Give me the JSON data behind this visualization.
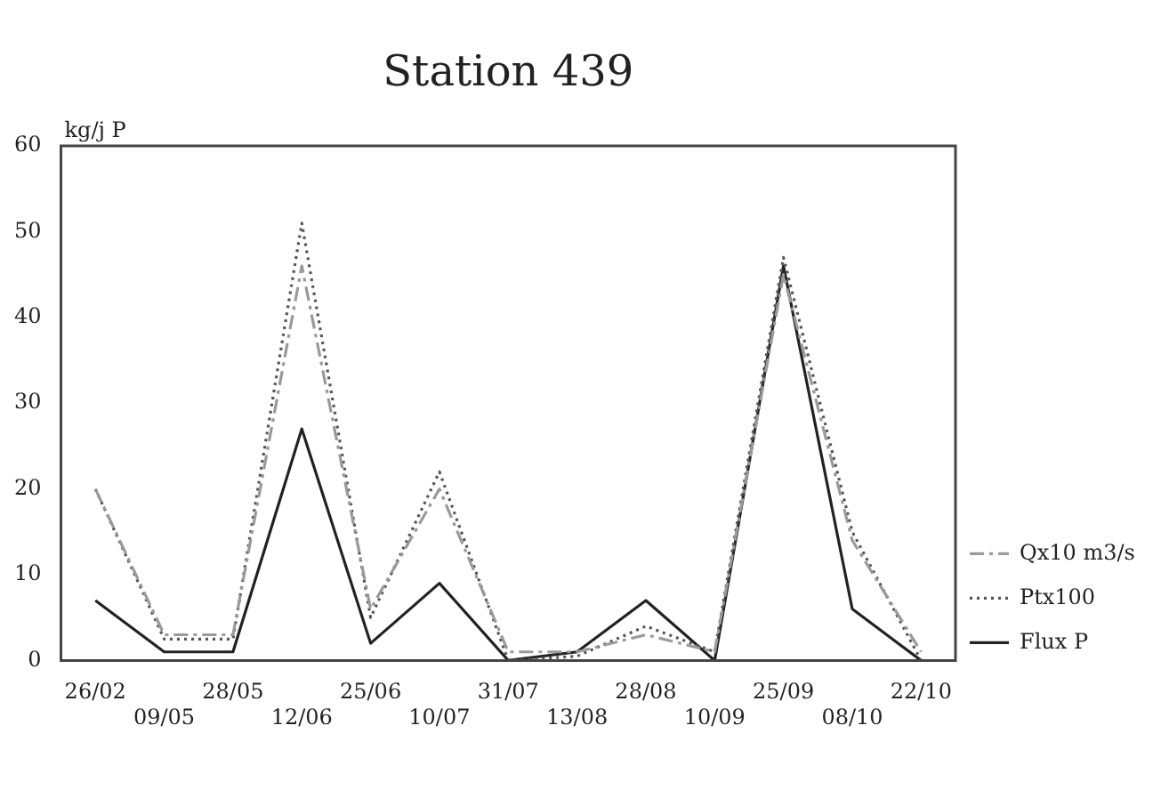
{
  "chart_data": {
    "type": "line",
    "title": "Station 439",
    "ylabel": "kg/j P",
    "categories": [
      "26/02",
      "09/05",
      "28/05",
      "12/06",
      "25/06",
      "10/07",
      "31/07",
      "13/08",
      "28/08",
      "10/09",
      "25/09",
      "08/10",
      "22/10"
    ],
    "series": [
      {
        "name": "Qx10 m3/s",
        "color": "#9a9a9a",
        "line_style": "dashed",
        "values": [
          20,
          3,
          3,
          46,
          6,
          20,
          1,
          1,
          3,
          1,
          45,
          14,
          1
        ]
      },
      {
        "name": "Ptx100",
        "color": "#555555",
        "line_style": "dotted",
        "values": [
          20,
          2.5,
          2.5,
          51,
          5,
          22,
          0,
          0.5,
          4,
          1,
          47,
          15,
          0
        ]
      },
      {
        "name": "Flux P",
        "color": "#222222",
        "line_style": "solid",
        "values": [
          7,
          1,
          1,
          27,
          2,
          9,
          0,
          1,
          7,
          0,
          46,
          6,
          0
        ]
      }
    ],
    "ylim": [
      0,
      60
    ],
    "yticks": [
      0,
      10,
      20,
      30,
      40,
      50,
      60
    ],
    "grid": false,
    "legend": "right",
    "marker": "none"
  }
}
